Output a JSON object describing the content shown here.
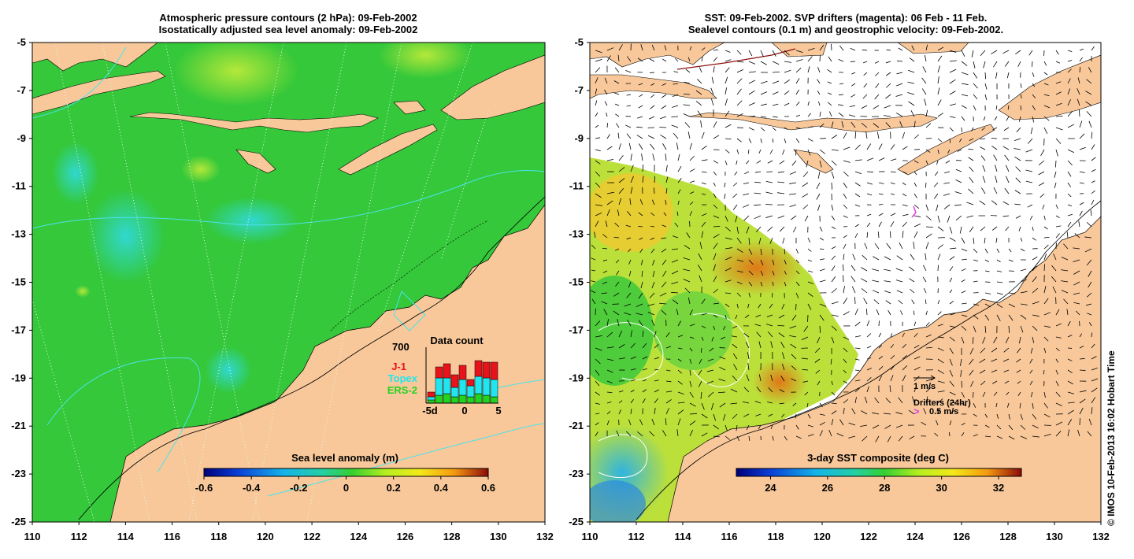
{
  "left_panel": {
    "title_line1": "Atmospheric pressure contours (2 hPa): 09-Feb-2002",
    "title_line2": "Isostatically adjusted sea level anomaly: 09-Feb-2002",
    "lat_ticks": [
      "-5",
      "-7",
      "-9",
      "-11",
      "-13",
      "-15",
      "-17",
      "-19",
      "-21",
      "-23",
      "-25"
    ],
    "lon_ticks": [
      "110",
      "112",
      "114",
      "116",
      "118",
      "120",
      "122",
      "124",
      "126",
      "128",
      "130",
      "132"
    ],
    "colorbar": {
      "title": "Sea level anomaly (m)",
      "ticks": [
        "-0.6",
        "-0.4",
        "-0.2",
        "0",
        "0.2",
        "0.4",
        "0.6"
      ],
      "range": [
        -0.6,
        0.6
      ]
    },
    "data_count": {
      "title": "Data count",
      "max_label": "700",
      "x_ticks": [
        "-5d",
        "0",
        "5"
      ],
      "legend": [
        {
          "label": "J-1",
          "color": "#e8121a"
        },
        {
          "label": "Topex",
          "color": "#22e5f0"
        },
        {
          "label": "ERS-2",
          "color": "#22d322"
        }
      ]
    }
  },
  "right_panel": {
    "title_line1": "SST: 09-Feb-2002. SVP drifters (magenta): 06 Feb - 11 Feb.",
    "title_line2": "Sealevel contours (0.1 m) and geostrophic velocity: 09-Feb-2002.",
    "lat_ticks": [
      "-5",
      "-7",
      "-9",
      "-11",
      "-13",
      "-15",
      "-17",
      "-19",
      "-21",
      "-23",
      "-25"
    ],
    "lon_ticks": [
      "110",
      "112",
      "114",
      "116",
      "118",
      "120",
      "122",
      "124",
      "126",
      "128",
      "130",
      "132"
    ],
    "colorbar": {
      "title": "3-day SST composite (deg C)",
      "ticks": [
        "24",
        "26",
        "28",
        "30",
        "32"
      ],
      "range": [
        22.8,
        32.8
      ]
    },
    "velocity_scale_label": "1 m/s",
    "drifters_label": "Drifters (24hr)",
    "drifters_speed_label": "0.5 m/s"
  },
  "credit": "© IMOS 10-Feb-2013 16:02 Hobart Time",
  "colors": {
    "land": "#f8c89a",
    "ocean_green": "#2ec82e",
    "text_red": "#e8121a",
    "text_cyan": "#22e5f0",
    "text_green": "#22d322",
    "drifter_magenta": "#e040e0"
  }
}
